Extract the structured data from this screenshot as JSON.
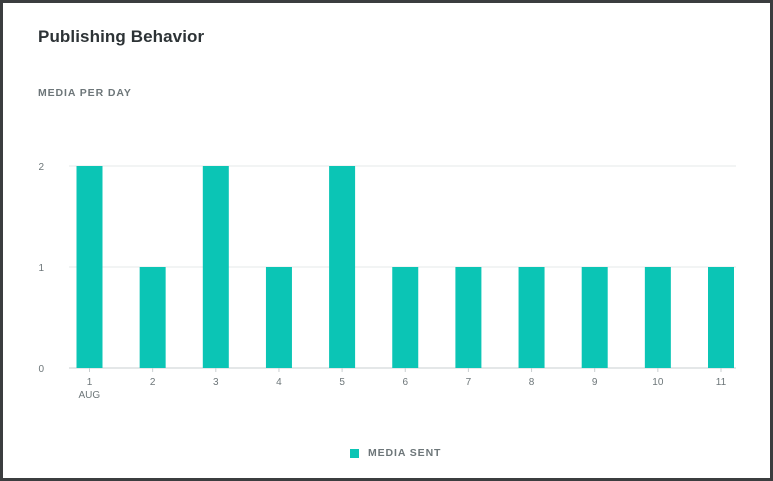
{
  "card": {
    "title": "Publishing Behavior",
    "subtitle": "MEDIA PER DAY"
  },
  "colors": {
    "bar": "#0bc5b5",
    "grid": "#e6e9ea",
    "axis": "#c9cfd1",
    "tick_text": "#6d7679"
  },
  "legend": {
    "label": "MEDIA SENT"
  },
  "chart_data": {
    "type": "bar",
    "categories": [
      "1",
      "2",
      "3",
      "4",
      "5",
      "6",
      "7",
      "8",
      "9",
      "10",
      "11"
    ],
    "category_sublabels": {
      "0": "AUG"
    },
    "series": [
      {
        "name": "MEDIA SENT",
        "values": [
          2,
          1,
          2,
          1,
          2,
          1,
          1,
          1,
          1,
          1,
          1
        ]
      }
    ],
    "title": "Publishing Behavior",
    "subtitle": "MEDIA PER DAY",
    "xlabel": "",
    "ylabel": "",
    "ylim": [
      0,
      2
    ],
    "yticks": [
      0,
      1,
      2
    ],
    "grid": true,
    "legend_position": "bottom-center"
  }
}
